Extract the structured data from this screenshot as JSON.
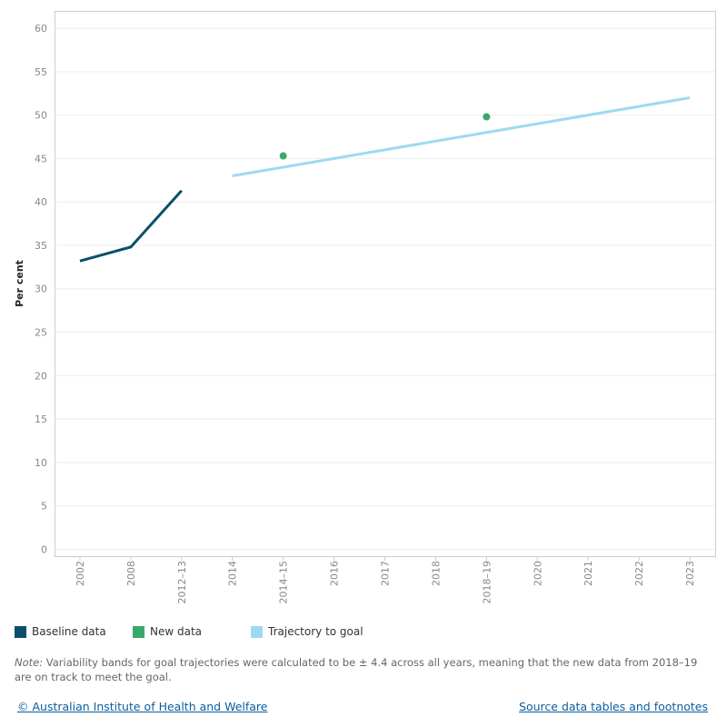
{
  "chart_data": {
    "type": "line",
    "y_label": "Per cent",
    "categories": [
      "2002",
      "2008",
      "2012–13",
      "2014",
      "2014–15",
      "2016",
      "2017",
      "2018",
      "2018–19",
      "2020",
      "2021",
      "2022",
      "2023"
    ],
    "series": [
      {
        "name": "Baseline data",
        "color": "#0b4f6c",
        "mode": "line",
        "values": [
          33.2,
          34.8,
          41.3,
          null,
          null,
          null,
          null,
          null,
          null,
          null,
          null,
          null,
          null
        ]
      },
      {
        "name": "New data",
        "color": "#3aa86b",
        "mode": "markers",
        "values": [
          null,
          null,
          null,
          null,
          45.3,
          null,
          null,
          null,
          49.8,
          null,
          null,
          null,
          null
        ]
      },
      {
        "name": "Trajectory to goal",
        "color": "#9dd9f3",
        "mode": "line",
        "values": [
          null,
          null,
          null,
          43,
          44,
          45,
          46,
          47,
          48,
          49,
          50,
          51,
          52
        ]
      }
    ],
    "ylim": [
      -0.8,
      62
    ],
    "yticks": [
      0,
      5,
      10,
      15,
      20,
      25,
      30,
      35,
      40,
      45,
      50,
      55,
      60
    ],
    "grid": true
  },
  "note": {
    "label": "Note:",
    "text": " Variability bands for goal trajectories were calculated to be ± 4.4 across all years, meaning that the new data from 2018–19 are on track to meet the goal."
  },
  "footer": {
    "left": "© Australian Institute of Health and Welfare",
    "right": "Source data tables and footnotes"
  }
}
